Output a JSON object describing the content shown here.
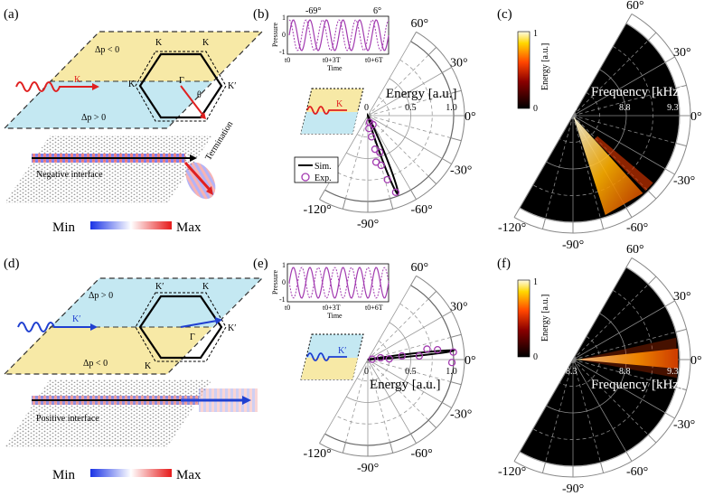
{
  "panels": {
    "a": {
      "label": "(a)",
      "top_region": "Δp < 0",
      "bottom_region": "Δp > 0",
      "wave_label": "K",
      "gamma": "Γ",
      "theta": "θ",
      "k_points": [
        "K",
        "K",
        "K",
        "K′"
      ],
      "interface": "Negative interface",
      "termination": "Termination"
    },
    "b": {
      "label": "(b)",
      "axis_title": "Energy [a.u.]",
      "radial_ticks": [
        "0",
        "0.5",
        "1.0"
      ],
      "angles": [
        "60°",
        "30°",
        "0°",
        "-30°",
        "-60°",
        "-90°",
        "-120°"
      ],
      "inset_ylabel": "Pressure",
      "inset_xlabel": "Time",
      "inset_yticks": [
        "1",
        "0",
        "-1"
      ],
      "inset_xticks": [
        "t0",
        "t0+3T",
        "t0+6T"
      ],
      "inset_annot": [
        "-69°",
        "6°"
      ],
      "wave_label": "K",
      "legend": {
        "sim": "Sim.",
        "exp": "Exp."
      }
    },
    "c": {
      "label": "(c)",
      "cbar_title": "Energy [a.u.]",
      "cbar_ticks": [
        "1",
        "0"
      ],
      "axis_title": "Frequency [kHz]",
      "radial_ticks": [
        "8.3",
        "8.8",
        "9.3"
      ],
      "angles": [
        "60°",
        "30°",
        "0°",
        "-30°",
        "-60°",
        "-90°",
        "-120°"
      ]
    },
    "d": {
      "label": "(d)",
      "top_region": "Δp > 0",
      "bottom_region": "Δp < 0",
      "wave_label": "K′",
      "gamma": "Γ",
      "k_points": [
        "K′",
        "K",
        "K",
        "K′"
      ],
      "interface": "Positive interface"
    },
    "e": {
      "label": "(e)",
      "axis_title": "Energy [a.u.]",
      "radial_ticks": [
        "0",
        "0.5",
        "1.0"
      ],
      "angles": [
        "60°",
        "30°",
        "0°",
        "-30°",
        "-60°",
        "-90°",
        "-120°"
      ],
      "inset_ylabel": "Pressure",
      "inset_xlabel": "Time",
      "inset_yticks": [
        "1",
        "0",
        "-1"
      ],
      "inset_xticks": [
        "t0",
        "t0+3T",
        "t0+6T"
      ],
      "wave_label": "K′"
    },
    "f": {
      "label": "(f)",
      "cbar_title": "Energy [a.u.]",
      "cbar_ticks": [
        "1",
        "0"
      ],
      "axis_title": "Frequency [kHz]",
      "radial_ticks": [
        "8.3",
        "8.8",
        "9.3"
      ],
      "angles": [
        "60°",
        "30°",
        "0°",
        "-30°",
        "-60°",
        "-90°",
        "-120°"
      ]
    }
  },
  "colorbar_field": {
    "min": "Min",
    "max": "Max"
  },
  "colors": {
    "yellow": "#f7e9a6",
    "blue": "#c4e8f2",
    "red": "#e02020",
    "waveblue": "#1f3fd0",
    "purple": "#a23ab0"
  }
}
